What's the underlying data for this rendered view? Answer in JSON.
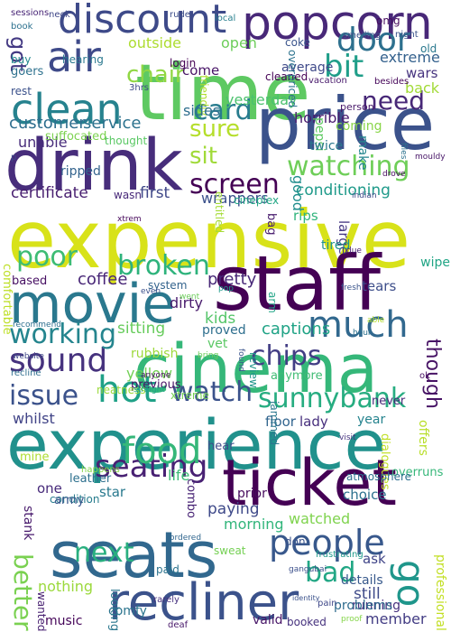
{
  "word_cloud": {
    "words": [
      {
        "text": "expensive",
        "color": "#d8e219"
      },
      {
        "text": "experience",
        "color": "#21918c"
      },
      {
        "text": "time",
        "color": "#5ec962"
      },
      {
        "text": "price",
        "color": "#3b528b"
      },
      {
        "text": "drink",
        "color": "#472d7b"
      },
      {
        "text": "staff",
        "color": "#440154"
      },
      {
        "text": "cinema",
        "color": "#35b779"
      },
      {
        "text": "ticket",
        "color": "#440154"
      },
      {
        "text": "seats",
        "color": "#31688e"
      },
      {
        "text": "recliner",
        "color": "#3b528b"
      },
      {
        "text": "popcorn",
        "color": "#482878"
      },
      {
        "text": "discount",
        "color": "#3e4a89"
      },
      {
        "text": "movie",
        "color": "#2a788e"
      },
      {
        "text": "air",
        "color": "#3e4a89"
      },
      {
        "text": "clean",
        "color": "#26828e"
      },
      {
        "text": "door",
        "color": "#2d708e"
      },
      {
        "text": "bit",
        "color": "#1f9e89"
      },
      {
        "text": "card",
        "color": "#287c8e"
      },
      {
        "text": "need",
        "color": "#482878"
      },
      {
        "text": "chair",
        "color": "#90d743"
      },
      {
        "text": "got",
        "color": "#443a83"
      },
      {
        "text": "watching",
        "color": "#6ece58"
      },
      {
        "text": "sure",
        "color": "#b5de2b"
      },
      {
        "text": "sit",
        "color": "#a0da39"
      },
      {
        "text": "screen",
        "color": "#440154"
      },
      {
        "text": "customer",
        "color": "#2e6e8e"
      },
      {
        "text": "service",
        "color": "#2c728e"
      },
      {
        "text": "yesterday",
        "color": "#4ac16d"
      },
      {
        "text": "poor",
        "color": "#3dbc74"
      },
      {
        "text": "broken",
        "color": "#2eb37c"
      },
      {
        "text": "much",
        "color": "#31688e"
      },
      {
        "text": "seating",
        "color": "#482173"
      },
      {
        "text": "food",
        "color": "#35b779"
      },
      {
        "text": "hot",
        "color": "#1fa187"
      },
      {
        "text": "watch",
        "color": "#3b528b"
      },
      {
        "text": "sunnybank",
        "color": "#27ad81"
      },
      {
        "text": "sound",
        "color": "#46327e"
      },
      {
        "text": "working",
        "color": "#25858e"
      },
      {
        "text": "chips",
        "color": "#433e85"
      },
      {
        "text": "though",
        "color": "#471365"
      },
      {
        "text": "issue",
        "color": "#3b528b"
      },
      {
        "text": "people",
        "color": "#38588c"
      },
      {
        "text": "better",
        "color": "#7ad151"
      },
      {
        "text": "go",
        "color": "#1f968b"
      },
      {
        "text": "bad",
        "color": "#22a785"
      },
      {
        "text": "next",
        "color": "#29af7f"
      },
      {
        "text": "coffee",
        "color": "#482677"
      },
      {
        "text": "certificate",
        "color": "#481f70"
      },
      {
        "text": "conditioning",
        "color": "#1f9a8a"
      },
      {
        "text": "first",
        "color": "#3f4788"
      },
      {
        "text": "captions",
        "color": "#20a386"
      },
      {
        "text": "pretty",
        "color": "#482878"
      },
      {
        "text": "dirty",
        "color": "#481a6c"
      },
      {
        "text": "comfortable",
        "color": "#bddf26"
      },
      {
        "text": "large",
        "color": "#453882"
      },
      {
        "text": "rips",
        "color": "#30b47c"
      },
      {
        "text": "kids",
        "color": "#54c568"
      },
      {
        "text": "sitting",
        "color": "#67cc5c"
      },
      {
        "text": "whilst",
        "color": "#414487"
      },
      {
        "text": "yellow",
        "color": "#73d056"
      },
      {
        "text": "rubbish",
        "color": "#9dd93b"
      },
      {
        "text": "floor",
        "color": "#32658e"
      },
      {
        "text": "lady",
        "color": "#472f7d"
      },
      {
        "text": "combo",
        "color": "#482475"
      },
      {
        "text": "paying",
        "color": "#3e4989"
      },
      {
        "text": "morning",
        "color": "#31b57b"
      },
      {
        "text": "watched",
        "color": "#7fd34e"
      },
      {
        "text": "nothing",
        "color": "#9bd93c"
      },
      {
        "text": "member",
        "color": "#433d84"
      },
      {
        "text": "running",
        "color": "#46307e"
      },
      {
        "text": "professional",
        "color": "#c2df23"
      },
      {
        "text": "still",
        "color": "#3e4a89"
      },
      {
        "text": "ask",
        "color": "#404588"
      },
      {
        "text": "one",
        "color": "#472a7a"
      },
      {
        "text": "star",
        "color": "#29798e"
      },
      {
        "text": "choice",
        "color": "#2c718e"
      },
      {
        "text": "prior",
        "color": "#460a5d"
      },
      {
        "text": "problems",
        "color": "#2f6c8e"
      },
      {
        "text": "details",
        "color": "#38598c"
      },
      {
        "text": "comfy",
        "color": "#2b748e"
      },
      {
        "text": "looking",
        "color": "#2a778e"
      },
      {
        "text": "music",
        "color": "#450559"
      },
      {
        "text": "wanted",
        "color": "#482071"
      },
      {
        "text": "valid",
        "color": "#481668"
      },
      {
        "text": "average",
        "color": "#3e4989"
      },
      {
        "text": "open",
        "color": "#6ccd5a"
      },
      {
        "text": "outside",
        "color": "#addc30"
      },
      {
        "text": "horrible",
        "color": "#481b6d"
      },
      {
        "text": "back",
        "color": "#a2da37"
      },
      {
        "text": "extreme",
        "color": "#34618d"
      },
      {
        "text": "wars",
        "color": "#46337f"
      },
      {
        "text": "cleaned",
        "color": "#440154"
      },
      {
        "text": "come",
        "color": "#481467"
      },
      {
        "text": "coke",
        "color": "#3a548c"
      },
      {
        "text": "friendly",
        "color": "#b0dd2f"
      },
      {
        "text": "login",
        "color": "#440154"
      },
      {
        "text": "goers",
        "color": "#2d718e"
      },
      {
        "text": "rest",
        "color": "#3b518b"
      },
      {
        "text": "buy",
        "color": "#23888e"
      },
      {
        "text": "hearing",
        "color": "#2a788e"
      },
      {
        "text": "unable",
        "color": "#472c7a"
      },
      {
        "text": "suffocated",
        "color": "#7cd250"
      },
      {
        "text": "thought",
        "color": "#5ac864"
      },
      {
        "text": "ripped",
        "color": "#33638d"
      },
      {
        "text": "coming",
        "color": "#89d548"
      },
      {
        "text": "pepsi",
        "color": "#5ec962"
      },
      {
        "text": "twice",
        "color": "#2a778e"
      },
      {
        "text": "make",
        "color": "#24868e"
      },
      {
        "text": "wrappers",
        "color": "#3b518b"
      },
      {
        "text": "cineplex",
        "color": "#22a785"
      },
      {
        "text": "entitled",
        "color": "#a5db36"
      },
      {
        "text": "wasn",
        "color": "#482979"
      },
      {
        "text": "good",
        "color": "#218e8d"
      },
      {
        "text": "bag",
        "color": "#481c6e"
      },
      {
        "text": "tired",
        "color": "#21918c"
      },
      {
        "text": "based",
        "color": "#471063"
      },
      {
        "text": "system",
        "color": "#33638d"
      },
      {
        "text": "arm",
        "color": "#20a486"
      },
      {
        "text": "tears",
        "color": "#3d4e8a"
      },
      {
        "text": "wipe",
        "color": "#21a585"
      },
      {
        "text": "vet",
        "color": "#5ac864"
      },
      {
        "text": "proved",
        "color": "#2e6f8e"
      },
      {
        "text": "anymore",
        "color": "#3fbc73"
      },
      {
        "text": "review",
        "color": "#1f958b"
      },
      {
        "text": "previous",
        "color": "#471365"
      },
      {
        "text": "xtreme",
        "color": "#75d054"
      },
      {
        "text": "neatness",
        "color": "#9bd93c"
      },
      {
        "text": "jammed",
        "color": "#2a788e"
      },
      {
        "text": "year",
        "color": "#25838e"
      },
      {
        "text": "never",
        "color": "#482979"
      },
      {
        "text": "hear",
        "color": "#3e4c8a"
      },
      {
        "text": "life",
        "color": "#3bbb75"
      },
      {
        "text": "overruns",
        "color": "#35b779"
      },
      {
        "text": "offers",
        "color": "#b8de29"
      },
      {
        "text": "dialogues",
        "color": "#c0df25"
      },
      {
        "text": "leather",
        "color": "#2d708e"
      },
      {
        "text": "mine",
        "color": "#addc30"
      },
      {
        "text": "stank",
        "color": "#481a6c"
      },
      {
        "text": "condition",
        "color": "#287d8e"
      },
      {
        "text": "army",
        "color": "#39558c"
      },
      {
        "text": "atmosphere",
        "color": "#2d708e"
      },
      {
        "text": "don",
        "color": "#3a538b"
      },
      {
        "text": "sweat",
        "color": "#75d054"
      },
      {
        "text": "paid",
        "color": "#2c738e"
      },
      {
        "text": "deaf",
        "color": "#48186a"
      },
      {
        "text": "booked",
        "color": "#46327e"
      },
      {
        "text": "frustrating",
        "color": "#1f998a"
      },
      {
        "text": "pain",
        "color": "#3f4889"
      },
      {
        "text": "rarely",
        "color": "#46307e"
      },
      {
        "text": "overpriced",
        "color": "#2c728e"
      },
      {
        "text": "omg",
        "color": "#470d60"
      },
      {
        "text": "old",
        "color": "#2a788e"
      },
      {
        "text": "night",
        "color": "#3a538b"
      },
      {
        "text": "smelling",
        "color": "#3c4f8a"
      },
      {
        "text": "vacation",
        "color": "#48196b"
      },
      {
        "text": "person",
        "color": "#48186a"
      },
      {
        "text": "besides",
        "color": "#450559"
      },
      {
        "text": "sides",
        "color": "#2e6e8e"
      },
      {
        "text": "p",
        "color": "#3e4989"
      },
      {
        "text": "3hrs",
        "color": "#3e4989"
      },
      {
        "text": "sessions",
        "color": "#482576"
      },
      {
        "text": "book",
        "color": "#2d718e"
      },
      {
        "text": "neck",
        "color": "#3f4788"
      },
      {
        "text": "rude",
        "color": "#3d4e8a"
      },
      {
        "text": "local",
        "color": "#277f8e"
      },
      {
        "text": "indian",
        "color": "#3e4a89"
      },
      {
        "text": "fresh",
        "color": "#3a548c"
      },
      {
        "text": "hour",
        "color": "#2c728e"
      },
      {
        "text": "recommend",
        "color": "#2e6f8e"
      },
      {
        "text": "website",
        "color": "#3f4889"
      },
      {
        "text": "recline",
        "color": "#2e6e8e"
      },
      {
        "text": "happens",
        "color": "#85d54a"
      },
      {
        "text": "straight",
        "color": "#1fa188"
      },
      {
        "text": "anyone",
        "color": "#470e61"
      },
      {
        "text": "bring",
        "color": "#6ccd5a"
      },
      {
        "text": "pop",
        "color": "#1e9b8a"
      },
      {
        "text": "gangubai",
        "color": "#3c508b"
      },
      {
        "text": "identity",
        "color": "#3b528b"
      },
      {
        "text": "visit",
        "color": "#46337f"
      },
      {
        "text": "ordered",
        "color": "#31668e"
      },
      {
        "text": "files",
        "color": "#2c728e"
      },
      {
        "text": "mouldy",
        "color": "#481668"
      },
      {
        "text": "drove",
        "color": "#460b5e"
      },
      {
        "text": "xtrem",
        "color": "#46075a"
      },
      {
        "text": "proof",
        "color": "#85d54a"
      },
      {
        "text": "ok",
        "color": "#471063"
      },
      {
        "text": "found",
        "color": "#3a548c"
      },
      {
        "text": "due",
        "color": "#482173"
      },
      {
        "text": "able",
        "color": "#b2dd2d"
      },
      {
        "text": "went",
        "color": "#6ccd5a"
      },
      {
        "text": "even",
        "color": "#3b518b"
      },
      {
        "text": "adf",
        "color": "#2a788e"
      }
    ]
  }
}
